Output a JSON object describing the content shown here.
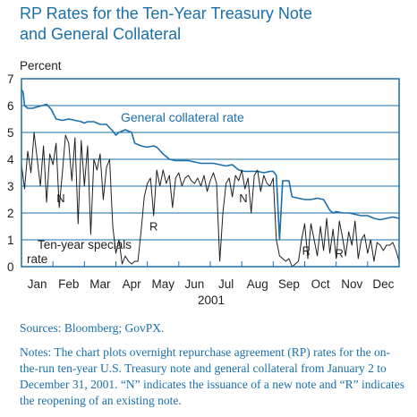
{
  "title_line1": "RP Rates for the Ten-Year Treasury Note",
  "title_line2": "and General Collateral",
  "sources": "Sources: Bloomberg; GovPX.",
  "notes": "Notes: The chart plots overnight repurchase agreement (RP) rates for the on-the-run ten-year U.S. Treasury note and general collateral from January 2 to December 31, 2001. “N” indicates the issuance of a new note and “R” indicates the reopening of an existing note.",
  "colors": {
    "gc_line": "#1a6fa8",
    "specials_line": "#1f1f1f",
    "gridline": "#1a6fa8",
    "frame": "#1a6fa8",
    "title": "#1a6fa8"
  },
  "chart_data": {
    "type": "line",
    "title": "RP Rates for the Ten-Year Treasury Note and General Collateral",
    "ylabel": "Percent",
    "xlabel": "2001",
    "ylim": [
      0,
      7
    ],
    "yticks": [
      0,
      1,
      2,
      3,
      4,
      5,
      6,
      7
    ],
    "xlim": [
      1,
      13
    ],
    "categories": [
      "Jan",
      "Feb",
      "Mar",
      "Apr",
      "May",
      "Jun",
      "Jul",
      "Aug",
      "Sep",
      "Oct",
      "Nov",
      "Dec"
    ],
    "grid": true,
    "series": [
      {
        "name": "General collateral rate",
        "x": [
          1.0,
          1.05,
          1.1,
          1.2,
          1.35,
          1.5,
          1.65,
          1.8,
          1.95,
          2.1,
          2.3,
          2.5,
          2.7,
          2.9,
          3.0,
          3.1,
          3.3,
          3.5,
          3.7,
          3.9,
          4.0,
          4.1,
          4.3,
          4.5,
          4.6,
          4.8,
          5.0,
          5.2,
          5.3,
          5.5,
          5.7,
          5.9,
          6.1,
          6.3,
          6.5,
          6.7,
          6.9,
          7.1,
          7.3,
          7.5,
          7.7,
          7.9,
          8.1,
          8.3,
          8.5,
          8.7,
          8.9,
          9.0,
          9.1,
          9.2,
          9.3,
          9.5,
          9.6,
          9.8,
          10.0,
          10.2,
          10.4,
          10.6,
          10.7,
          10.8,
          10.9,
          11.0,
          11.2,
          11.4,
          11.6,
          11.8,
          12.0,
          12.2,
          12.4,
          12.6,
          12.8,
          13.0
        ],
        "y": [
          6.6,
          6.5,
          6.0,
          5.9,
          5.9,
          5.95,
          6.0,
          6.05,
          5.85,
          5.5,
          5.45,
          5.5,
          5.45,
          5.4,
          5.35,
          5.4,
          5.4,
          5.3,
          5.3,
          5.05,
          4.9,
          5.0,
          5.1,
          5.0,
          4.6,
          4.5,
          4.45,
          4.5,
          4.45,
          4.2,
          4.0,
          3.95,
          3.95,
          3.95,
          3.9,
          3.85,
          3.85,
          3.85,
          3.8,
          3.75,
          3.8,
          3.6,
          3.55,
          3.55,
          3.55,
          3.5,
          3.55,
          3.55,
          3.4,
          1.0,
          3.2,
          3.2,
          2.6,
          2.55,
          2.5,
          2.5,
          2.55,
          2.5,
          2.3,
          2.1,
          2.0,
          2.05,
          2.0,
          2.0,
          1.95,
          1.9,
          1.9,
          1.8,
          1.75,
          1.8,
          1.85,
          1.8
        ]
      },
      {
        "name": "Ten-year specials rate",
        "x": [
          1.0,
          1.1,
          1.2,
          1.3,
          1.4,
          1.5,
          1.6,
          1.7,
          1.8,
          1.9,
          2.0,
          2.1,
          2.2,
          2.3,
          2.4,
          2.5,
          2.6,
          2.7,
          2.8,
          2.9,
          3.0,
          3.1,
          3.2,
          3.3,
          3.4,
          3.5,
          3.6,
          3.7,
          3.8,
          3.9,
          4.0,
          4.1,
          4.2,
          4.3,
          4.4,
          4.5,
          4.6,
          4.7,
          4.8,
          4.9,
          5.0,
          5.1,
          5.2,
          5.3,
          5.4,
          5.5,
          5.6,
          5.7,
          5.8,
          5.9,
          6.0,
          6.1,
          6.2,
          6.3,
          6.4,
          6.5,
          6.6,
          6.7,
          6.8,
          6.9,
          7.0,
          7.1,
          7.2,
          7.3,
          7.4,
          7.5,
          7.6,
          7.7,
          7.8,
          7.9,
          8.0,
          8.1,
          8.2,
          8.3,
          8.4,
          8.5,
          8.6,
          8.7,
          8.8,
          8.9,
          9.0,
          9.1,
          9.2,
          9.3,
          9.4,
          9.5,
          9.6,
          9.7,
          9.8,
          9.9,
          10.0,
          10.1,
          10.2,
          10.3,
          10.4,
          10.5,
          10.6,
          10.7,
          10.8,
          10.9,
          11.0,
          11.1,
          11.2,
          11.3,
          11.4,
          11.5,
          11.6,
          11.7,
          11.8,
          11.9,
          12.0,
          12.1,
          12.2,
          12.3,
          12.4,
          12.5,
          12.6,
          12.7,
          12.8,
          12.9,
          13.0
        ],
        "y": [
          3.8,
          2.9,
          4.3,
          3.5,
          5.0,
          4.0,
          3.0,
          4.5,
          2.4,
          4.2,
          3.8,
          4.6,
          2.2,
          3.5,
          4.9,
          4.6,
          3.2,
          4.8,
          1.6,
          4.7,
          3.0,
          4.5,
          1.2,
          4.0,
          3.6,
          4.2,
          2.5,
          3.7,
          4.0,
          1.5,
          0.5,
          1.0,
          0.1,
          0.4,
          0.2,
          0.1,
          0.2,
          0.2,
          1.3,
          2.6,
          3.1,
          3.3,
          1.9,
          3.6,
          3.0,
          3.6,
          3.1,
          3.4,
          2.2,
          3.3,
          3.5,
          3.0,
          3.3,
          3.4,
          3.2,
          3.1,
          3.3,
          3.0,
          3.4,
          2.8,
          3.2,
          3.5,
          3.1,
          0.2,
          2.0,
          3.1,
          3.3,
          2.6,
          3.4,
          3.2,
          3.6,
          2.9,
          3.3,
          2.0,
          3.4,
          3.6,
          2.8,
          3.4,
          3.1,
          3.0,
          3.3,
          1.0,
          0.4,
          0.3,
          0.2,
          0.3,
          0.0,
          0.1,
          0.2,
          1.0,
          1.6,
          0.3,
          1.6,
          1.0,
          0.4,
          1.5,
          0.6,
          1.8,
          0.5,
          1.4,
          0.3,
          1.7,
          1.1,
          0.4,
          1.3,
          0.8,
          1.7,
          0.3,
          1.0,
          1.2,
          0.5,
          1.0,
          0.2,
          0.9,
          0.8,
          0.6,
          0.8,
          0.8,
          0.9,
          0.6,
          0.2
        ]
      }
    ],
    "annotations": [
      {
        "text": "N",
        "x": 2.25,
        "y": 2.4
      },
      {
        "text": "R",
        "x": 5.2,
        "y": 1.35
      },
      {
        "text": "N",
        "x": 8.05,
        "y": 2.4
      },
      {
        "text": "R",
        "x": 10.05,
        "y": 0.45
      },
      {
        "text": "R",
        "x": 11.1,
        "y": 0.35
      }
    ]
  }
}
